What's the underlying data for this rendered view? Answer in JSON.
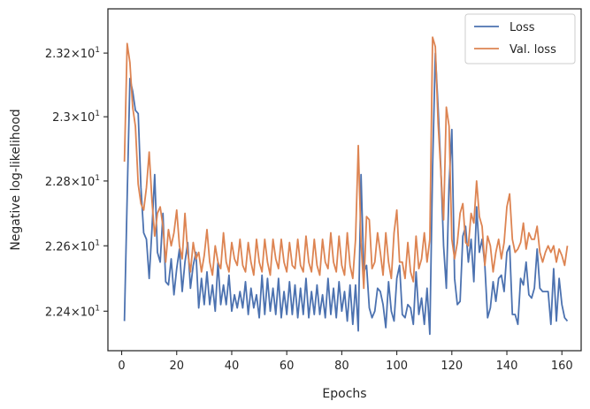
{
  "chart_data": {
    "type": "line",
    "title": "",
    "xlabel": "Epochs",
    "ylabel": "Negative log-likelihood",
    "xlim": [
      -5,
      167
    ],
    "ylim": [
      22.28,
      23.34
    ],
    "yscale": "log",
    "grid": false,
    "legend_position": "top-right",
    "x_ticks": [
      0,
      20,
      40,
      60,
      80,
      100,
      120,
      140,
      160
    ],
    "x_tick_labels": [
      "0",
      "20",
      "40",
      "60",
      "80",
      "100",
      "120",
      "140",
      "160"
    ],
    "y_ticks": [
      22.4,
      22.6,
      22.8,
      23.0,
      23.2
    ],
    "y_tick_labels": [
      {
        "base": "2.24",
        "mult": "10",
        "exp": "1"
      },
      {
        "base": "2.26",
        "mult": "10",
        "exp": "1"
      },
      {
        "base": "2.28",
        "mult": "10",
        "exp": "1"
      },
      {
        "base": "2.3",
        "mult": "10",
        "exp": "1"
      },
      {
        "base": "2.32",
        "mult": "10",
        "exp": "1"
      }
    ],
    "series": [
      {
        "name": "Loss",
        "color": "#4c72b0",
        "x": [
          1,
          2,
          3,
          4,
          5,
          6,
          7,
          8,
          9,
          10,
          11,
          12,
          13,
          14,
          15,
          16,
          17,
          18,
          19,
          20,
          21,
          22,
          23,
          24,
          25,
          26,
          27,
          28,
          29,
          30,
          31,
          32,
          33,
          34,
          35,
          36,
          37,
          38,
          39,
          40,
          41,
          42,
          43,
          44,
          45,
          46,
          47,
          48,
          49,
          50,
          51,
          52,
          53,
          54,
          55,
          56,
          57,
          58,
          59,
          60,
          61,
          62,
          63,
          64,
          65,
          66,
          67,
          68,
          69,
          70,
          71,
          72,
          73,
          74,
          75,
          76,
          77,
          78,
          79,
          80,
          81,
          82,
          83,
          84,
          85,
          86,
          87,
          88,
          89,
          90,
          91,
          92,
          93,
          94,
          95,
          96,
          97,
          98,
          99,
          100,
          101,
          102,
          103,
          104,
          105,
          106,
          107,
          108,
          109,
          110,
          111,
          112,
          113,
          114,
          115,
          116,
          117,
          118,
          119,
          120,
          121,
          122,
          123,
          124,
          125,
          126,
          127,
          128,
          129,
          130,
          131,
          132,
          133,
          134,
          135,
          136,
          137,
          138,
          139,
          140,
          141,
          142,
          143,
          144,
          145,
          146,
          147,
          148,
          149,
          150,
          151,
          152,
          153,
          154,
          155,
          156,
          157,
          158,
          159,
          160,
          161,
          162
        ],
        "y": [
          22.37,
          22.75,
          23.12,
          23.08,
          23.02,
          23.01,
          22.78,
          22.64,
          22.62,
          22.5,
          22.65,
          22.82,
          22.58,
          22.55,
          22.7,
          22.49,
          22.48,
          22.56,
          22.45,
          22.53,
          22.59,
          22.46,
          22.55,
          22.61,
          22.47,
          22.54,
          22.58,
          22.41,
          22.5,
          22.42,
          22.52,
          22.42,
          22.48,
          22.4,
          22.55,
          22.42,
          22.48,
          22.42,
          22.51,
          22.4,
          22.45,
          22.41,
          22.46,
          22.41,
          22.49,
          22.39,
          22.47,
          22.41,
          22.45,
          22.38,
          22.51,
          22.39,
          22.5,
          22.4,
          22.47,
          22.39,
          22.5,
          22.38,
          22.46,
          22.39,
          22.49,
          22.39,
          22.48,
          22.38,
          22.47,
          22.39,
          22.5,
          22.38,
          22.46,
          22.39,
          22.48,
          22.39,
          22.45,
          22.38,
          22.5,
          22.39,
          22.47,
          22.38,
          22.49,
          22.4,
          22.46,
          22.37,
          22.48,
          22.36,
          22.48,
          22.34,
          22.82,
          22.52,
          22.54,
          22.41,
          22.38,
          22.4,
          22.47,
          22.46,
          22.42,
          22.35,
          22.49,
          22.4,
          22.37,
          22.5,
          22.54,
          22.39,
          22.38,
          22.42,
          22.41,
          22.36,
          22.52,
          22.39,
          22.44,
          22.36,
          22.47,
          22.33,
          22.84,
          23.2,
          23.03,
          22.84,
          22.6,
          22.47,
          22.79,
          22.96,
          22.5,
          22.42,
          22.43,
          22.63,
          22.66,
          22.55,
          22.62,
          22.49,
          22.72,
          22.58,
          22.62,
          22.54,
          22.38,
          22.41,
          22.49,
          22.43,
          22.5,
          22.51,
          22.46,
          22.58,
          22.6,
          22.39,
          22.39,
          22.36,
          22.5,
          22.48,
          22.55,
          22.45,
          22.44,
          22.47,
          22.59,
          22.47,
          22.46,
          22.46,
          22.46,
          22.36,
          22.53,
          22.37,
          22.5,
          22.42,
          22.38,
          22.37
        ]
      },
      {
        "name": "Val. loss",
        "color": "#dd8452",
        "x": [
          1,
          2,
          3,
          4,
          5,
          6,
          7,
          8,
          9,
          10,
          11,
          12,
          13,
          14,
          15,
          16,
          17,
          18,
          19,
          20,
          21,
          22,
          23,
          24,
          25,
          26,
          27,
          28,
          29,
          30,
          31,
          32,
          33,
          34,
          35,
          36,
          37,
          38,
          39,
          40,
          41,
          42,
          43,
          44,
          45,
          46,
          47,
          48,
          49,
          50,
          51,
          52,
          53,
          54,
          55,
          56,
          57,
          58,
          59,
          60,
          61,
          62,
          63,
          64,
          65,
          66,
          67,
          68,
          69,
          70,
          71,
          72,
          73,
          74,
          75,
          76,
          77,
          78,
          79,
          80,
          81,
          82,
          83,
          84,
          85,
          86,
          87,
          88,
          89,
          90,
          91,
          92,
          93,
          94,
          95,
          96,
          97,
          98,
          99,
          100,
          101,
          102,
          103,
          104,
          105,
          106,
          107,
          108,
          109,
          110,
          111,
          112,
          113,
          114,
          115,
          116,
          117,
          118,
          119,
          120,
          121,
          122,
          123,
          124,
          125,
          126,
          127,
          128,
          129,
          130,
          131,
          132,
          133,
          134,
          135,
          136,
          137,
          138,
          139,
          140,
          141,
          142,
          143,
          144,
          145,
          146,
          147,
          148,
          149,
          150,
          151,
          152,
          153,
          154,
          155,
          156,
          157,
          158,
          159,
          160,
          161,
          162
        ],
        "y": [
          22.86,
          23.23,
          23.17,
          23.03,
          22.97,
          22.79,
          22.73,
          22.71,
          22.78,
          22.89,
          22.74,
          22.63,
          22.7,
          22.72,
          22.66,
          22.55,
          22.65,
          22.6,
          22.64,
          22.71,
          22.6,
          22.56,
          22.7,
          22.58,
          22.52,
          22.61,
          22.56,
          22.58,
          22.52,
          22.57,
          22.65,
          22.55,
          22.51,
          22.6,
          22.55,
          22.53,
          22.64,
          22.55,
          22.52,
          22.61,
          22.56,
          22.54,
          22.62,
          22.54,
          22.52,
          22.61,
          22.55,
          22.51,
          22.62,
          22.55,
          22.52,
          22.62,
          22.55,
          22.51,
          22.62,
          22.56,
          22.53,
          22.62,
          22.55,
          22.52,
          22.61,
          22.54,
          22.53,
          22.62,
          22.54,
          22.52,
          22.63,
          22.55,
          22.52,
          22.62,
          22.54,
          22.51,
          22.62,
          22.55,
          22.53,
          22.64,
          22.55,
          22.52,
          22.63,
          22.54,
          22.51,
          22.64,
          22.54,
          22.5,
          22.62,
          22.91,
          22.61,
          22.47,
          22.69,
          22.68,
          22.53,
          22.55,
          22.64,
          22.58,
          22.51,
          22.64,
          22.55,
          22.5,
          22.64,
          22.71,
          22.55,
          22.55,
          22.5,
          22.61,
          22.52,
          22.49,
          22.63,
          22.53,
          22.56,
          22.64,
          22.55,
          22.62,
          23.25,
          23.22,
          22.98,
          22.83,
          22.68,
          23.03,
          22.97,
          22.62,
          22.56,
          22.61,
          22.7,
          22.73,
          22.61,
          22.6,
          22.7,
          22.67,
          22.8,
          22.69,
          22.66,
          22.54,
          22.63,
          22.6,
          22.52,
          22.58,
          22.62,
          22.56,
          22.61,
          22.72,
          22.76,
          22.62,
          22.58,
          22.59,
          22.61,
          22.67,
          22.59,
          22.64,
          22.62,
          22.62,
          22.66,
          22.58,
          22.55,
          22.58,
          22.6,
          22.58,
          22.6,
          22.55,
          22.59,
          22.57,
          22.54,
          22.6
        ]
      }
    ]
  }
}
